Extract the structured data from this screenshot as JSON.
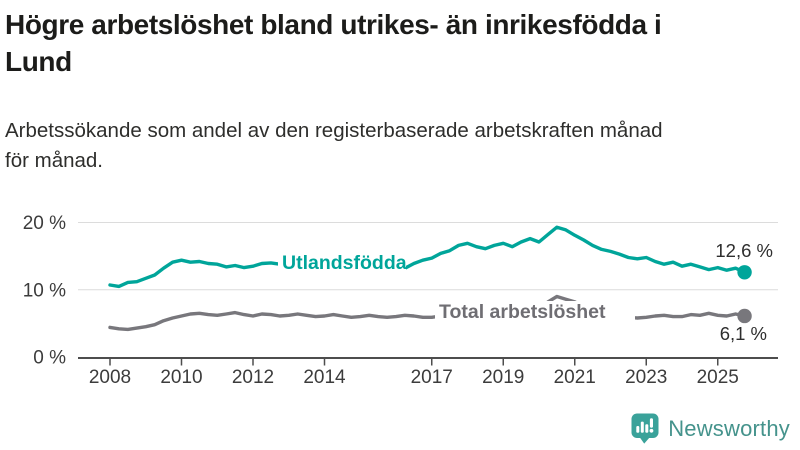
{
  "header": {
    "title_lines": [
      "Högre arbetslöshet bland utrikes- än inrikesfödda i",
      "Lund"
    ],
    "subtitle_lines": [
      "Arbetssökande som andel av den registerbaserade arbetskraften månad",
      "för månad."
    ]
  },
  "footer": {
    "brand": "Newsworthy",
    "brand_color": "#45938c",
    "icon_color": "#3aa29a"
  },
  "chart_data": {
    "type": "line",
    "title": "Högre arbetslöshet bland utrikes- än inrikesfödda i Lund",
    "subtitle": "Arbetssökande som andel av den registerbaserade arbetskraften månad för månad.",
    "unit": "%",
    "grid": true,
    "legend_position": "inline-labels",
    "x_start": 2008.0,
    "x_step": 0.25,
    "x_ticks": [
      2008,
      2010,
      2012,
      2014,
      2017,
      2019,
      2021,
      2023,
      2025
    ],
    "y_ticks": [
      {
        "value": 0,
        "label": "0 %"
      },
      {
        "value": 10,
        "label": "10 %"
      },
      {
        "value": 20,
        "label": "20 %"
      }
    ],
    "ylim": [
      0,
      22.3
    ],
    "colors": {
      "grid": "#dcdcdc",
      "axis": "#4d4d4d",
      "axis_text": "#3c3c3c",
      "value_label": "#2e2e2e"
    },
    "series": [
      {
        "name": "Utlandsfödda",
        "color": "#00a59a",
        "end_value": 12.6,
        "end_label": "12,6 %",
        "values": [
          10.7,
          10.5,
          11.1,
          11.2,
          11.7,
          12.2,
          13.2,
          14.1,
          14.4,
          14.1,
          14.2,
          13.9,
          13.8,
          13.4,
          13.6,
          13.3,
          13.5,
          13.9,
          14.0,
          13.8,
          13.6,
          13.8,
          13.5,
          13.3,
          13.1,
          13.4,
          13.2,
          13.0,
          12.9,
          13.2,
          13.0,
          13.2,
          13.4,
          13.2,
          13.9,
          14.4,
          14.7,
          15.4,
          15.8,
          16.6,
          16.9,
          16.4,
          16.1,
          16.6,
          16.9,
          16.4,
          17.1,
          17.6,
          17.1,
          18.2,
          19.3,
          18.9,
          18.1,
          17.4,
          16.6,
          16.0,
          15.7,
          15.3,
          14.8,
          14.6,
          14.8,
          14.2,
          13.8,
          14.1,
          13.5,
          13.8,
          13.4,
          13.0,
          13.3,
          12.9,
          13.2,
          12.6
        ]
      },
      {
        "name": "Total arbetslöshet",
        "color": "#78777c",
        "end_value": 6.1,
        "end_label": "6,1 %",
        "values": [
          4.4,
          4.2,
          4.1,
          4.3,
          4.5,
          4.8,
          5.4,
          5.8,
          6.1,
          6.4,
          6.5,
          6.3,
          6.2,
          6.4,
          6.6,
          6.3,
          6.1,
          6.4,
          6.3,
          6.1,
          6.2,
          6.4,
          6.2,
          6.0,
          6.1,
          6.3,
          6.1,
          5.9,
          6.0,
          6.2,
          6.0,
          5.9,
          6.0,
          6.2,
          6.1,
          5.9,
          5.9,
          6.1,
          6.0,
          5.8,
          5.8,
          6.0,
          5.9,
          5.7,
          5.8,
          6.0,
          6.1,
          6.0,
          6.3,
          8.2,
          9.0,
          8.6,
          8.2,
          7.5,
          7.0,
          6.6,
          6.4,
          6.1,
          5.9,
          5.8,
          5.9,
          6.1,
          6.2,
          6.0,
          6.0,
          6.3,
          6.2,
          6.5,
          6.2,
          6.1,
          6.4,
          6.1
        ]
      }
    ]
  }
}
